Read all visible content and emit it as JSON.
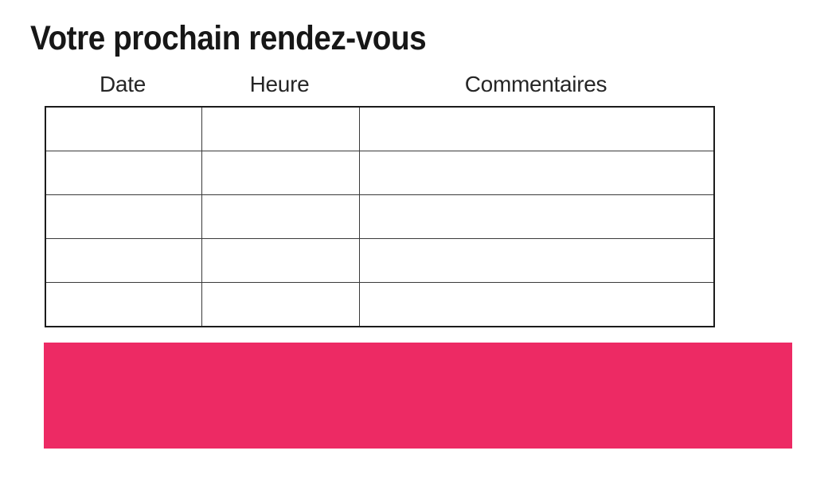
{
  "title": "Votre prochain rendez-vous",
  "table": {
    "columns": [
      {
        "label": "Date"
      },
      {
        "label": "Heure"
      },
      {
        "label": "Commentaires"
      }
    ],
    "rows": [
      [
        "",
        "",
        ""
      ],
      [
        "",
        "",
        ""
      ],
      [
        "",
        "",
        ""
      ],
      [
        "",
        "",
        ""
      ],
      [
        "",
        "",
        ""
      ]
    ]
  },
  "banner": {
    "color": "#ED2A64"
  },
  "colors": {
    "text": "#1a1a1a",
    "table_border_outer": "#1c1c1c",
    "table_border_inner": "#3a3a3a",
    "background": "#ffffff"
  }
}
